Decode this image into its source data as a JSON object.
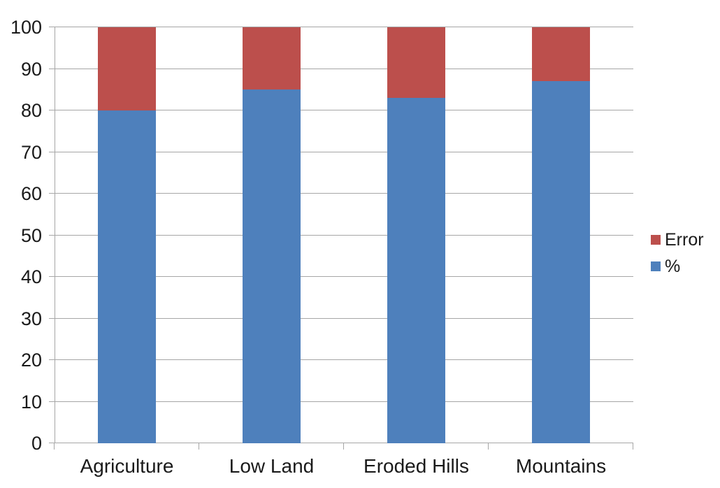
{
  "chart_data": {
    "type": "bar",
    "stacked": true,
    "orientation": "vertical",
    "categories": [
      "Agriculture",
      "Low Land",
      "Eroded Hills",
      "Mountains"
    ],
    "series": [
      {
        "name": "%",
        "color": "#4E80BC",
        "values": [
          80,
          85,
          83,
          87
        ]
      },
      {
        "name": "Error",
        "color": "#BC4F4C",
        "values": [
          20,
          15,
          17,
          13
        ]
      }
    ],
    "ylim": [
      0,
      100
    ],
    "yticks": [
      0,
      10,
      20,
      30,
      40,
      50,
      60,
      70,
      80,
      90,
      100
    ],
    "xlabel": "",
    "ylabel": "",
    "title": "",
    "grid": true,
    "legend_position": "right",
    "legend_order": [
      "Error",
      "%"
    ],
    "gridline_color": "#A6A6A6",
    "axis_color": "#A6A6A6",
    "text_color": "#1A1A1A",
    "background": "#FFFFFF"
  }
}
